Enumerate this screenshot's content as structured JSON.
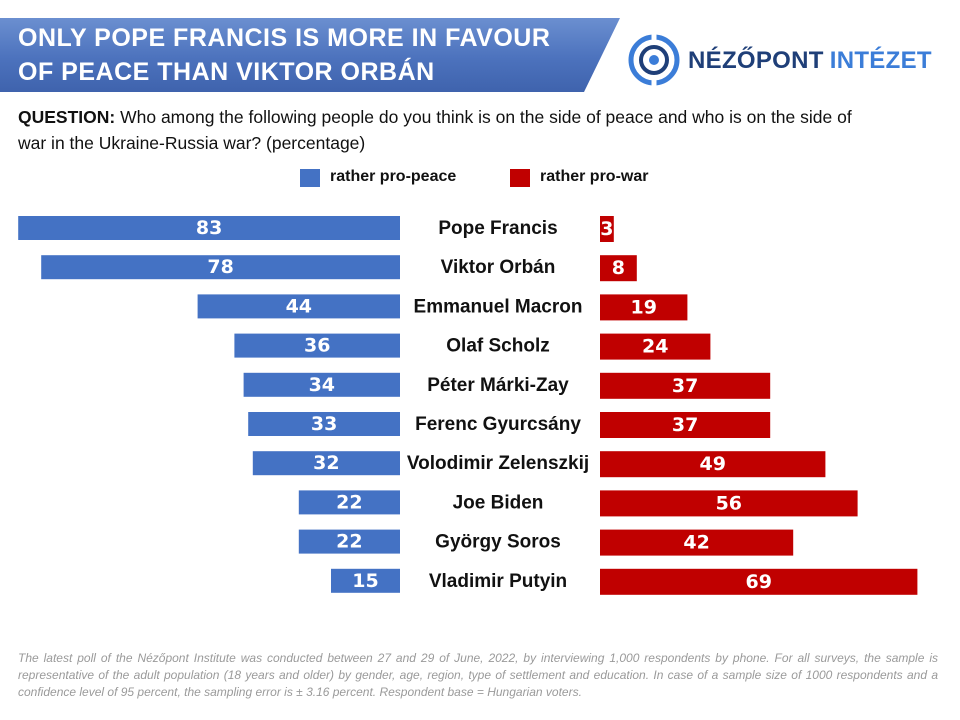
{
  "header": {
    "title_line1": "ONLY POPE FRANCIS IS MORE IN FAVOUR",
    "title_line2": "OF PEACE THAN VIKTOR ORBÁN"
  },
  "logo": {
    "word1": "NÉZŐPONT",
    "word2": "INTÉZET"
  },
  "question": {
    "label": "QUESTION:",
    "text": " Who among the following people do you think is on the side of peace and who is on the side of war in the Ukraine-Russia war? (percentage)"
  },
  "footnote": "The latest poll of the Nézőpont Institute was conducted between 27 and 29 of June, 2022, by interviewing 1,000 respondents by phone. For all surveys, the sample is representative of the adult population (18 years and older) by gender, age, region, type of settlement and education. In case of a sample size of 1000 respondents and a confidence level of 95 percent, the sampling error is ± 3.16 percent. Respondent base = Hungarian voters.",
  "colors": {
    "peace": "#4472c4",
    "war": "#c00000",
    "banner": "#4c72bd"
  },
  "chart_data": {
    "type": "bar",
    "orientation": "horizontal-diverging",
    "categories": [
      "Pope Francis",
      "Viktor Orbán",
      "Emmanuel Macron",
      "Olaf Scholz",
      "Péter Márki-Zay",
      "Ferenc Gyurcsány",
      "Volodimir Zelenszkij",
      "Joe Biden",
      "György Soros",
      "Vladimir Putyin"
    ],
    "series": [
      {
        "name": "rather pro-peace",
        "color": "#4472c4",
        "values": [
          83,
          78,
          44,
          36,
          34,
          33,
          32,
          22,
          22,
          15
        ]
      },
      {
        "name": "rather pro-war",
        "color": "#c00000",
        "values": [
          3,
          8,
          19,
          24,
          37,
          37,
          49,
          56,
          42,
          69
        ]
      }
    ],
    "legend_position": "top",
    "grid": false
  }
}
